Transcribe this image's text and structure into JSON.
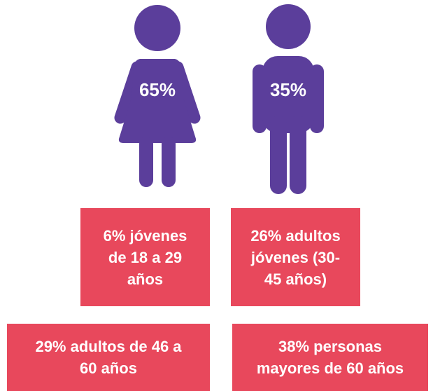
{
  "figures": [
    {
      "label": "65%"
    },
    {
      "label": "35%"
    }
  ],
  "boxes": [
    {
      "lines": [
        "6% jóvenes",
        "de 18 a 29",
        "años"
      ]
    },
    {
      "lines": [
        "26% adultos",
        "jóvenes (30-",
        "45 años)"
      ]
    },
    {
      "lines": [
        "29% adultos de 46 a",
        "60 años"
      ]
    },
    {
      "lines": [
        "38% personas",
        "mayores de 60 años"
      ]
    }
  ]
}
